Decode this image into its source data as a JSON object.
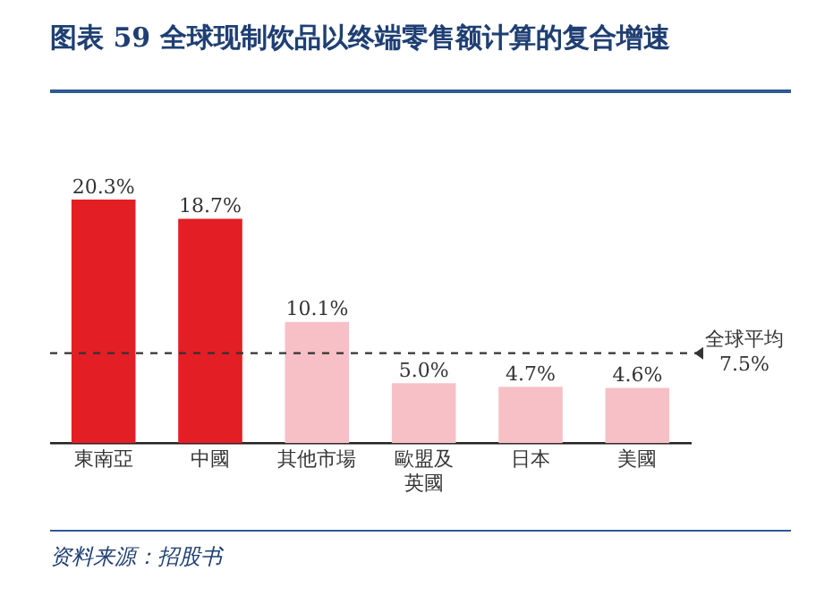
{
  "chart_data": {
    "type": "bar",
    "title": "图表 59  全球现制饮品以终端零售额计算的复合增速",
    "categories": [
      "東南亞",
      "中國",
      "其他市場",
      "歐盟及英國",
      "日本",
      "美國"
    ],
    "values": [
      20.3,
      18.7,
      10.1,
      5.0,
      4.7,
      4.6
    ],
    "value_labels": [
      "20.3%",
      "18.7%",
      "10.1%",
      "5.0%",
      "4.7%",
      "4.6%"
    ],
    "colors": [
      "#e31e24",
      "#e31e24",
      "#f7bfc6",
      "#f7bfc6",
      "#f7bfc6",
      "#f7bfc6"
    ],
    "ref_lines": [
      {
        "axis": "y",
        "value": 7.5,
        "label": "全球平均\n7.5%",
        "color": "#333333",
        "line_style": "dashed"
      }
    ],
    "annotations": [
      "资料来源：招股书"
    ],
    "grid": false,
    "legend": false
  }
}
